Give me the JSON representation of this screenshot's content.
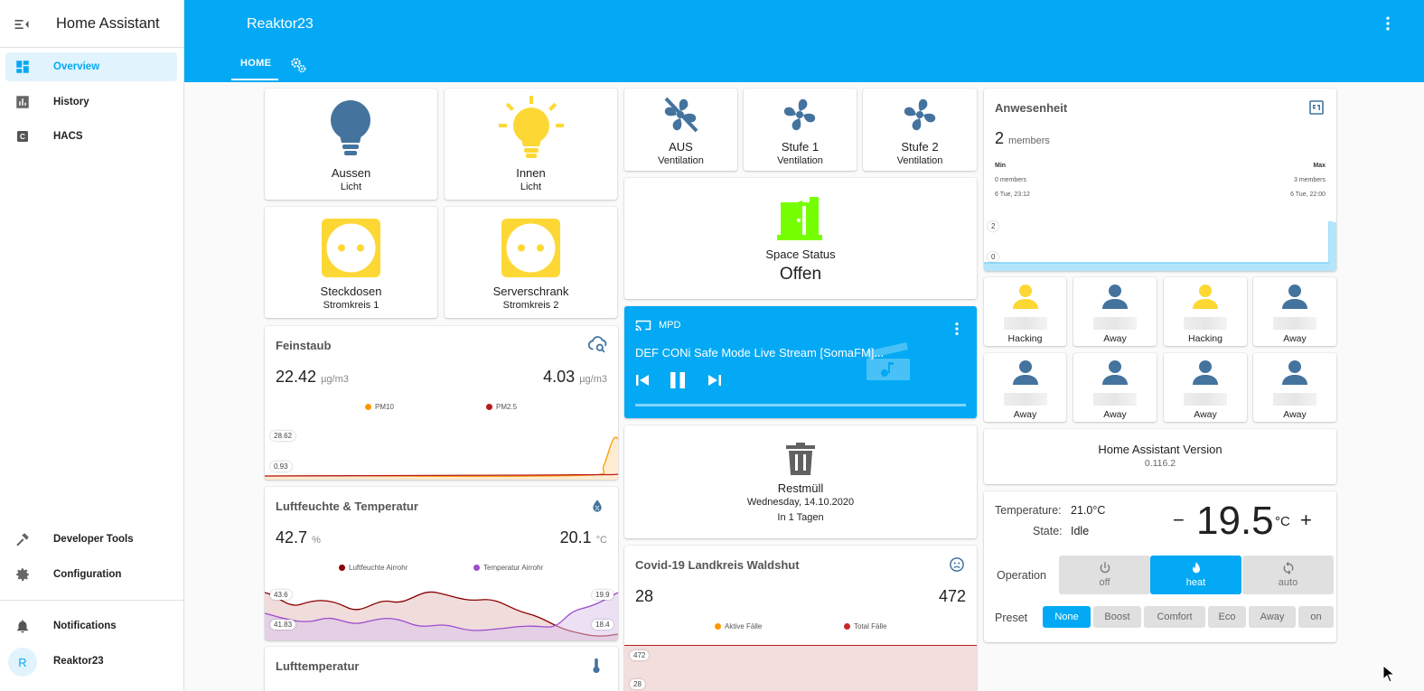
{
  "sidebar": {
    "title": "Home Assistant",
    "items": [
      {
        "label": "Overview",
        "icon": "dashboard-icon"
      },
      {
        "label": "History",
        "icon": "chart-icon"
      },
      {
        "label": "HACS",
        "icon": "hacs-icon"
      },
      {
        "label": "Developer Tools",
        "icon": "hammer-icon"
      },
      {
        "label": "Configuration",
        "icon": "gear-icon"
      },
      {
        "label": "Notifications",
        "icon": "bell-icon"
      }
    ],
    "user": {
      "initial": "R",
      "name": "Reaktor23"
    }
  },
  "header": {
    "title": "Reaktor23",
    "tabs": [
      {
        "label": "HOME"
      }
    ],
    "accent": "#03a9f4"
  },
  "lights": [
    {
      "name": "Aussen",
      "state": "Licht",
      "color": "#44739e"
    },
    {
      "name": "Innen",
      "state": "Licht",
      "color": "#fdd835"
    }
  ],
  "switches": [
    {
      "name": "Steckdosen",
      "state": "Stromkreis 1"
    },
    {
      "name": "Serverschrank",
      "state": "Stromkreis 2"
    }
  ],
  "fans": [
    {
      "name": "AUS",
      "state": "Ventilation"
    },
    {
      "name": "Stufe 1",
      "state": "Ventilation"
    },
    {
      "name": "Stufe 2",
      "state": "Ventilation"
    }
  ],
  "space": {
    "name": "Space Status",
    "state": "Offen"
  },
  "media": {
    "source": "MPD",
    "title": "DEF CONi Safe Mode Live Stream [SomaFM]..."
  },
  "trash": {
    "name": "Restmüll",
    "date": "Wednesday, 14.10.2020",
    "due": "In 1 Tagen"
  },
  "feinstaub": {
    "title": "Feinstaub",
    "value1": "22.42",
    "unit1": "µg/m3",
    "value2": "4.03",
    "unit2": "µg/m3",
    "legend": [
      "PM10",
      "PM2.5"
    ],
    "max_label": "28.62",
    "min_label": "0.93"
  },
  "humidity": {
    "title": "Luftfeuchte & Temperatur",
    "value1": "42.7",
    "unit1": "%",
    "value2": "20.1",
    "unit2": "°C",
    "legend": [
      "Luftfeuchte Airrohr",
      "Temperatur Airrohr"
    ],
    "left_max": "43.6",
    "left_min": "41.83",
    "right_max": "19.9",
    "right_min": "18.4"
  },
  "lufttemp": {
    "title": "Lufttemperatur"
  },
  "covid": {
    "title": "Covid-19 Landkreis Waldshut",
    "value1": "28",
    "value2": "472",
    "legend": [
      "Aktive Fälle",
      "Total Fälle"
    ],
    "max_label": "472",
    "min_label": "28"
  },
  "presence": {
    "title": "Anwesenheit",
    "count": "2",
    "count_unit": "members",
    "min_label": "Min",
    "max_label": "Max",
    "min_value": "0 members",
    "max_value": "3 members",
    "min_time": "6 Tue, 23:12",
    "max_time": "6 Tue, 22:00",
    "axis_top": "2",
    "axis_bottom": "0"
  },
  "people": [
    {
      "state": "Hacking",
      "color": "#fdd835"
    },
    {
      "state": "Away",
      "color": "#44739e"
    },
    {
      "state": "Hacking",
      "color": "#fdd835"
    },
    {
      "state": "Away",
      "color": "#44739e"
    },
    {
      "state": "Away",
      "color": "#44739e"
    },
    {
      "state": "Away",
      "color": "#44739e"
    },
    {
      "state": "Away",
      "color": "#44739e"
    },
    {
      "state": "Away",
      "color": "#44739e"
    }
  ],
  "version": {
    "title": "Home Assistant Version",
    "value": "0.116.2"
  },
  "thermostat": {
    "temp_label": "Temperature:",
    "temp_value": "21.0°C",
    "state_label": "State:",
    "state_value": "Idle",
    "minus": "−",
    "target": "19.5",
    "unit": "°C",
    "plus": "+",
    "operation_label": "Operation",
    "modes": [
      {
        "label": "off"
      },
      {
        "label": "heat"
      },
      {
        "label": "auto"
      }
    ],
    "active_mode": "heat",
    "preset_label": "Preset",
    "presets": [
      "None",
      "Boost",
      "Comfort",
      "Eco",
      "Away",
      "on"
    ],
    "active_preset": "None"
  }
}
